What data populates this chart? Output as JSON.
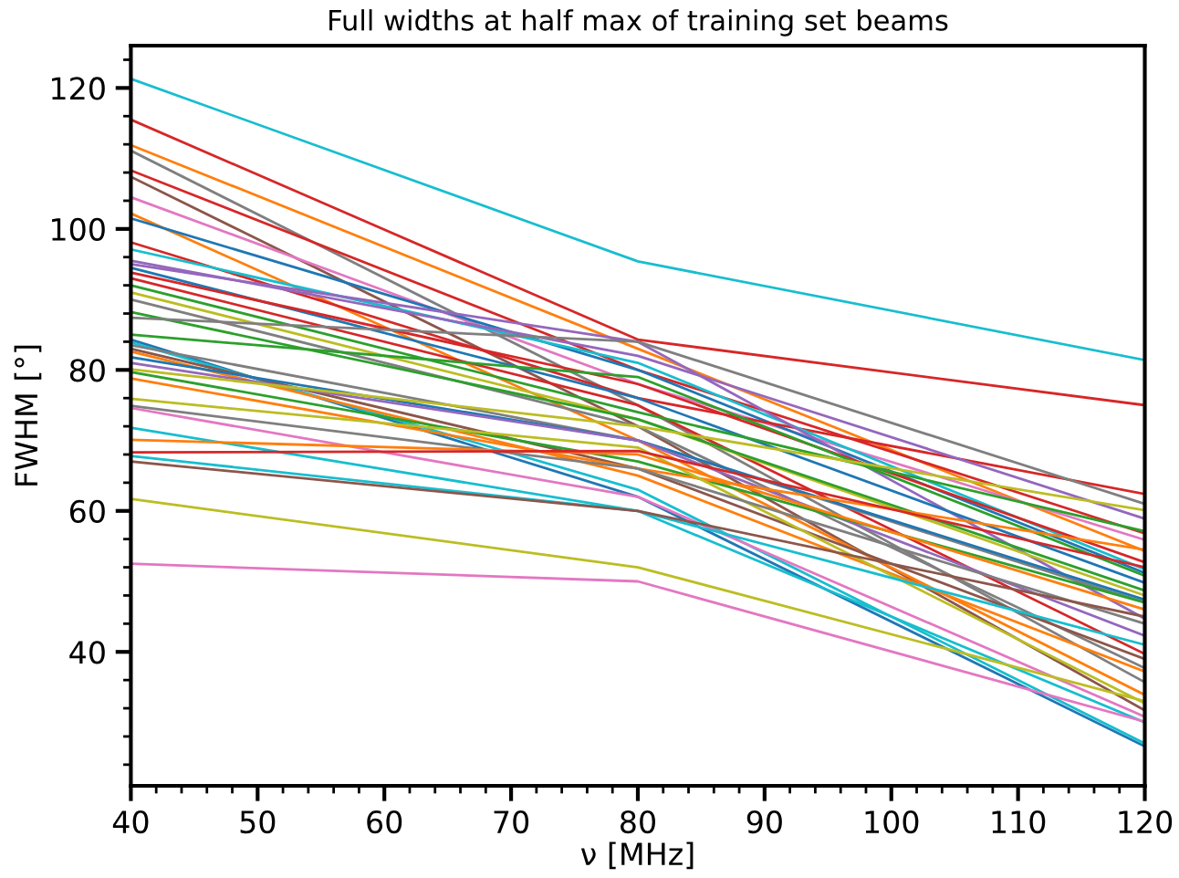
{
  "chart_data": {
    "type": "line",
    "title": "Full widths at half max of training set beams",
    "xlabel": "ν [MHz]",
    "ylabel": "FWHM [°]",
    "xlim": [
      40,
      120
    ],
    "ylim": [
      21,
      126
    ],
    "xticks": [
      40,
      50,
      60,
      70,
      80,
      90,
      100,
      110,
      120
    ],
    "yticks": [
      40,
      60,
      80,
      100,
      120
    ],
    "grid": false,
    "marker": "none",
    "line_style": "solid",
    "x": [
      40,
      80,
      120
    ],
    "series": [
      {
        "color": "#17becf",
        "values": [
          121.3,
          95.4,
          81.4
        ]
      },
      {
        "color": "#d62728",
        "values": [
          115.5,
          84.3,
          75
        ]
      },
      {
        "color": "#ff7f0e",
        "values": [
          111.9,
          83,
          54.3
        ]
      },
      {
        "color": "#7f7f7f",
        "values": [
          111.1,
          75,
          35.7
        ]
      },
      {
        "color": "#d62728",
        "values": [
          108.3,
          80,
          56.8
        ]
      },
      {
        "color": "#8c564b",
        "values": [
          107.4,
          72,
          31.7
        ]
      },
      {
        "color": "#e377c2",
        "values": [
          104.5,
          78,
          55.9
        ]
      },
      {
        "color": "#ff7f0e",
        "values": [
          102.2,
          70,
          33.9
        ]
      },
      {
        "color": "#1f77b4",
        "values": [
          101.5,
          80,
          51.2
        ]
      },
      {
        "color": "#d62728",
        "values": [
          98.1,
          76,
          62.4
        ]
      },
      {
        "color": "#17becf",
        "values": [
          97.1,
          81,
          51.7
        ]
      },
      {
        "color": "#9467bd",
        "values": [
          95.5,
          82,
          58.9
        ]
      },
      {
        "color": "#9467bd",
        "values": [
          95,
          84,
          44.7
        ]
      },
      {
        "color": "#1f77b4",
        "values": [
          94.5,
          76,
          49.8
        ]
      },
      {
        "color": "#d62728",
        "values": [
          93.8,
          78,
          52.7
        ]
      },
      {
        "color": "#d62728",
        "values": [
          93,
          75,
          39.7
        ]
      },
      {
        "color": "#2ca02c",
        "values": [
          92,
          74,
          57.1
        ]
      },
      {
        "color": "#bcbd22",
        "values": [
          91,
          73,
          48
        ]
      },
      {
        "color": "#7f7f7f",
        "values": [
          90,
          72,
          37.7
        ]
      },
      {
        "color": "#2ca02c",
        "values": [
          88.2,
          73,
          48.7
        ]
      },
      {
        "color": "#7f7f7f",
        "values": [
          87.4,
          84,
          61
        ]
      },
      {
        "color": "#2ca02c",
        "values": [
          85,
          79,
          50.8
        ]
      },
      {
        "color": "#1f77b4",
        "values": [
          84.3,
          62,
          26.6
        ]
      },
      {
        "color": "#17becf",
        "values": [
          83.9,
          63,
          27
        ]
      },
      {
        "color": "#7f7f7f",
        "values": [
          83.5,
          70,
          47
        ]
      },
      {
        "color": "#8c564b",
        "values": [
          83,
          66,
          39
        ]
      },
      {
        "color": "#ff7f0e",
        "values": [
          82.6,
          65,
          37.2
        ]
      },
      {
        "color": "#1f77b4",
        "values": [
          81.8,
          70,
          47.4
        ]
      },
      {
        "color": "#9467bd",
        "values": [
          81,
          70,
          42.3
        ]
      },
      {
        "color": "#bcbd22",
        "values": [
          80.1,
          72,
          60.1
        ]
      },
      {
        "color": "#2ca02c",
        "values": [
          79.7,
          67,
          47
        ]
      },
      {
        "color": "#ff7f0e",
        "values": [
          78.8,
          66,
          54.5
        ]
      },
      {
        "color": "#bcbd22",
        "values": [
          75.9,
          69,
          32.7
        ]
      },
      {
        "color": "#7f7f7f",
        "values": [
          74.9,
          66,
          44
        ]
      },
      {
        "color": "#e377c2",
        "values": [
          74.6,
          62,
          30.8
        ]
      },
      {
        "color": "#17becf",
        "values": [
          71.8,
          60,
          41
        ]
      },
      {
        "color": "#ff7f0e",
        "values": [
          70.1,
          68,
          46
        ]
      },
      {
        "color": "#d62728",
        "values": [
          68.3,
          68.5,
          52
        ]
      },
      {
        "color": "#17becf",
        "values": [
          67.8,
          60,
          30
        ]
      },
      {
        "color": "#8c564b",
        "values": [
          67,
          60,
          45
        ]
      },
      {
        "color": "#bcbd22",
        "values": [
          61.7,
          52,
          33
        ]
      },
      {
        "color": "#e377c2",
        "values": [
          52.5,
          50,
          30.1
        ]
      }
    ]
  }
}
